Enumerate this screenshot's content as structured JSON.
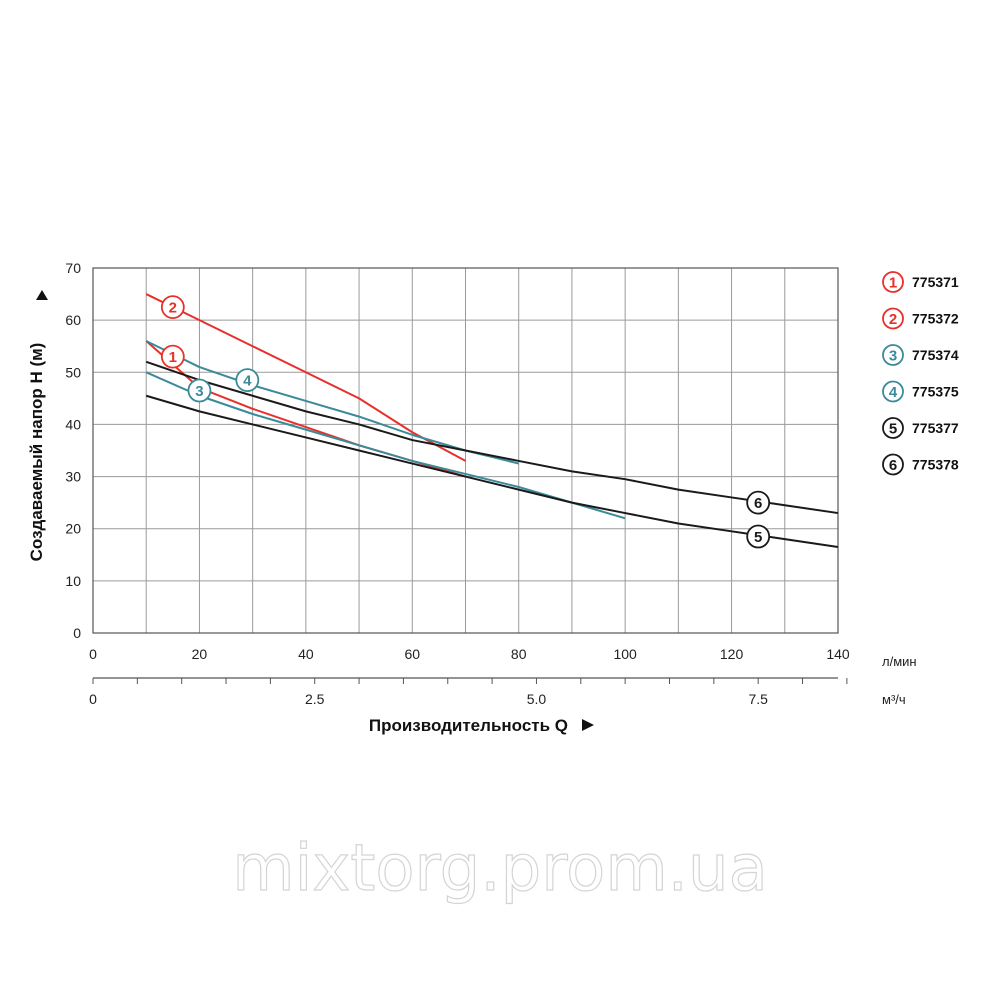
{
  "chart_data": {
    "type": "line",
    "ylabel": "Создаваемый напор H (м)",
    "xlabel": "Производительность Q",
    "x_unit_primary": "л/мин",
    "x_unit_secondary": "м³/ч",
    "xlim": [
      0,
      140
    ],
    "ylim": [
      0,
      70
    ],
    "x_ticks": [
      "0",
      "20",
      "40",
      "60",
      "80",
      "100",
      "120",
      "140"
    ],
    "y_ticks": [
      "0",
      "10",
      "20",
      "30",
      "40",
      "50",
      "60",
      "70"
    ],
    "secondary_ticks": [
      {
        "value": 0,
        "label": "0"
      },
      {
        "value": 2.5,
        "label": "2.5"
      },
      {
        "value": 5.0,
        "label": "5.0"
      },
      {
        "value": 7.5,
        "label": "7.5"
      }
    ],
    "grid": true,
    "legend_position": "right",
    "series": [
      {
        "id": "1",
        "name": "775371",
        "color": "#e8302a",
        "label_at": [
          15,
          53
        ],
        "points": [
          [
            10,
            56
          ],
          [
            20,
            47
          ],
          [
            30,
            43
          ],
          [
            40,
            39.5
          ],
          [
            50,
            36
          ],
          [
            60,
            33
          ],
          [
            70,
            30
          ]
        ]
      },
      {
        "id": "2",
        "name": "775372",
        "color": "#e8302a",
        "label_at": [
          15,
          62.5
        ],
        "points": [
          [
            10,
            65
          ],
          [
            20,
            60
          ],
          [
            30,
            55
          ],
          [
            40,
            50
          ],
          [
            50,
            45
          ],
          [
            60,
            38.5
          ],
          [
            70,
            33
          ]
        ]
      },
      {
        "id": "3",
        "name": "775374",
        "color": "#3a8a9a",
        "label_at": [
          20,
          46.5
        ],
        "points": [
          [
            10,
            50
          ],
          [
            20,
            45.5
          ],
          [
            30,
            42
          ],
          [
            40,
            39
          ],
          [
            50,
            36
          ],
          [
            60,
            33
          ],
          [
            70,
            30.5
          ],
          [
            80,
            28
          ],
          [
            90,
            25
          ],
          [
            100,
            22
          ]
        ]
      },
      {
        "id": "4",
        "name": "775375",
        "color": "#3a8a9a",
        "label_at": [
          29,
          48.5
        ],
        "points": [
          [
            10,
            56
          ],
          [
            20,
            51
          ],
          [
            30,
            47.5
          ],
          [
            40,
            44.5
          ],
          [
            50,
            41.5
          ],
          [
            60,
            38
          ],
          [
            70,
            35
          ],
          [
            80,
            32.5
          ]
        ]
      },
      {
        "id": "5",
        "name": "775377",
        "color": "#1a1a1a",
        "label_at": [
          125,
          18.5
        ],
        "points": [
          [
            10,
            45.5
          ],
          [
            20,
            42.5
          ],
          [
            30,
            40
          ],
          [
            40,
            37.5
          ],
          [
            50,
            35
          ],
          [
            60,
            32.5
          ],
          [
            70,
            30
          ],
          [
            80,
            27.5
          ],
          [
            90,
            25
          ],
          [
            100,
            23
          ],
          [
            110,
            21
          ],
          [
            120,
            19.5
          ],
          [
            130,
            18
          ],
          [
            140,
            16.5
          ]
        ]
      },
      {
        "id": "6",
        "name": "775378",
        "color": "#1a1a1a",
        "label_at": [
          125,
          25
        ],
        "points": [
          [
            10,
            52
          ],
          [
            20,
            48.5
          ],
          [
            30,
            45.5
          ],
          [
            40,
            42.5
          ],
          [
            50,
            40
          ],
          [
            60,
            37
          ],
          [
            70,
            35
          ],
          [
            80,
            33
          ],
          [
            90,
            31
          ],
          [
            100,
            29.5
          ],
          [
            110,
            27.5
          ],
          [
            120,
            26
          ],
          [
            130,
            24.5
          ],
          [
            140,
            23
          ]
        ]
      }
    ]
  },
  "watermark": "mixtorg.prom.ua"
}
